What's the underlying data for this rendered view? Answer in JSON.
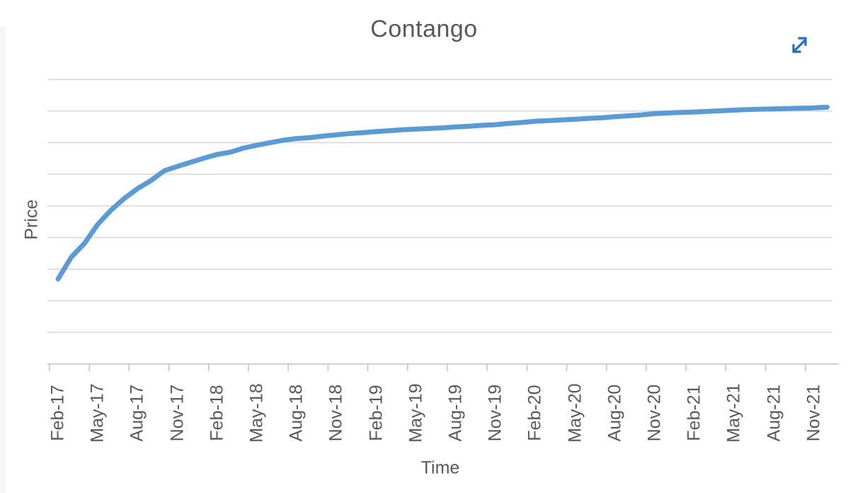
{
  "page": {
    "background_color": "#ffffff"
  },
  "header": {
    "expand_icon_color": "#1f6fc0"
  },
  "chart_data": {
    "type": "line",
    "title": "Contango",
    "xlabel": "Time",
    "ylabel": "Price",
    "legend": "none",
    "grid": "horizontal",
    "grid_color": "#d9d9d9",
    "axis_color": "#c9c9c9",
    "text_color": "#595959",
    "x_tick_labels": [
      "Feb-17",
      "May-17",
      "Aug-17",
      "Nov-17",
      "Feb-18",
      "May-18",
      "Aug-18",
      "Nov-18",
      "Feb-19",
      "May-19",
      "Aug-19",
      "Nov-19",
      "Feb-20",
      "May-20",
      "Aug-20",
      "Nov-20",
      "Feb-21",
      "May-21",
      "Aug-21",
      "Nov-21"
    ],
    "x_tick_interval_months": 3,
    "x_start_month": "Feb-17",
    "x_end_month": "Dec-21",
    "y_tick_labels": [],
    "y_axis_numbers_visible": false,
    "y_gridline_count": 9,
    "y_range_gridline_units": [
      0,
      9.2
    ],
    "series": [
      {
        "name": "Price",
        "color": "#5B9BD5",
        "stroke_width": 7,
        "x_step": "1 month",
        "values": [
          2.69,
          3.38,
          3.82,
          4.42,
          4.87,
          5.24,
          5.55,
          5.8,
          6.11,
          6.25,
          6.38,
          6.51,
          6.63,
          6.7,
          6.83,
          6.92,
          7.0,
          7.08,
          7.13,
          7.16,
          7.21,
          7.25,
          7.29,
          7.32,
          7.35,
          7.38,
          7.41,
          7.43,
          7.45,
          7.47,
          7.5,
          7.52,
          7.55,
          7.57,
          7.61,
          7.64,
          7.68,
          7.7,
          7.72,
          7.74,
          7.77,
          7.79,
          7.82,
          7.85,
          7.88,
          7.92,
          7.94,
          7.96,
          7.97,
          7.99,
          8.01,
          8.03,
          8.05,
          8.06,
          8.07,
          8.08,
          8.09,
          8.1,
          8.12
        ]
      }
    ]
  }
}
